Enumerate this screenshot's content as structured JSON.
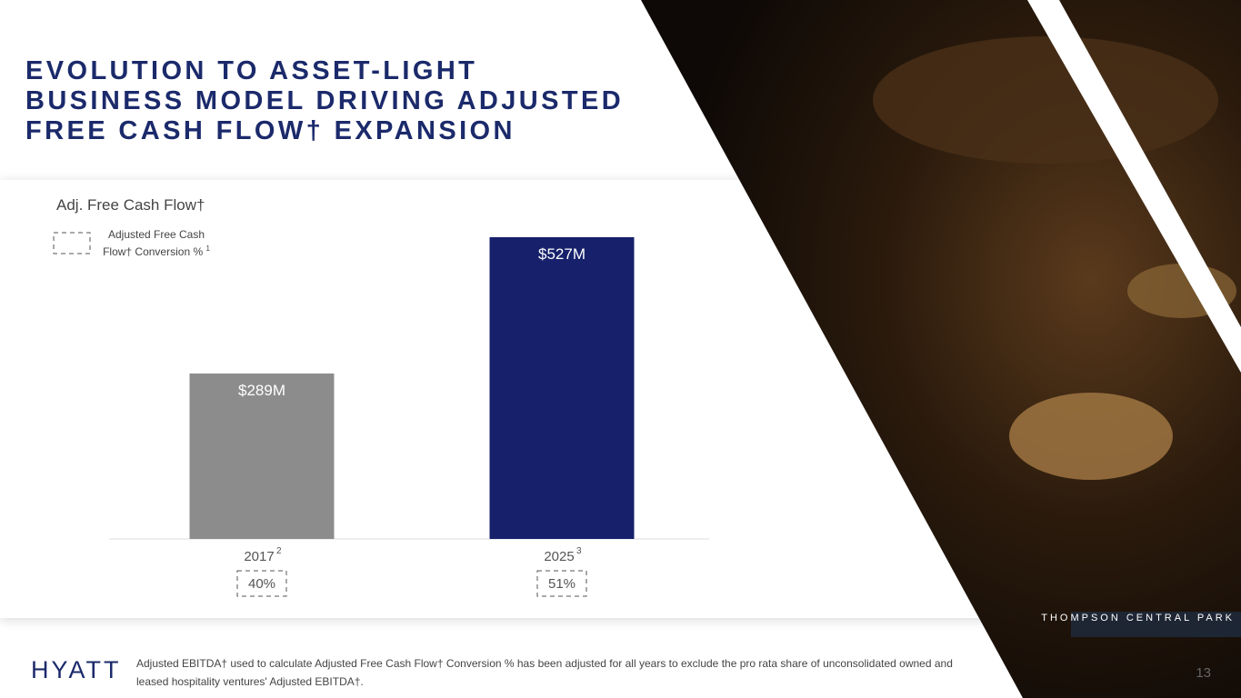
{
  "slide": {
    "title_lines": [
      "EVOLUTION TO ASSET-LIGHT",
      "BUSINESS MODEL DRIVING ADJUSTED",
      "FREE CASH FLOW† EXPANSION"
    ],
    "logo": "HYATT",
    "footnote": "Adjusted EBITDA† used to calculate Adjusted Free Cash Flow† Conversion % has been adjusted for all years to exclude the pro rata share of unconsolidated owned and leased hospitality ventures' Adjusted EBITDA†.",
    "page_number": "13",
    "photo_caption": "THOMPSON CENTRAL PARK"
  },
  "chart_data": {
    "type": "bar",
    "title": "Adj. Free Cash Flow†",
    "categories": [
      "2017",
      "2025"
    ],
    "category_notes": [
      "2",
      "3"
    ],
    "values": [
      289,
      527
    ],
    "value_labels": [
      "$289M",
      "$527M"
    ],
    "colors": [
      "#8c8c8c",
      "#16206b"
    ],
    "conversion": {
      "name": "Adjusted Free Cash Flow† Conversion %",
      "note": "1",
      "values": [
        40,
        51
      ],
      "value_labels": [
        "40%",
        "51%"
      ]
    }
  }
}
